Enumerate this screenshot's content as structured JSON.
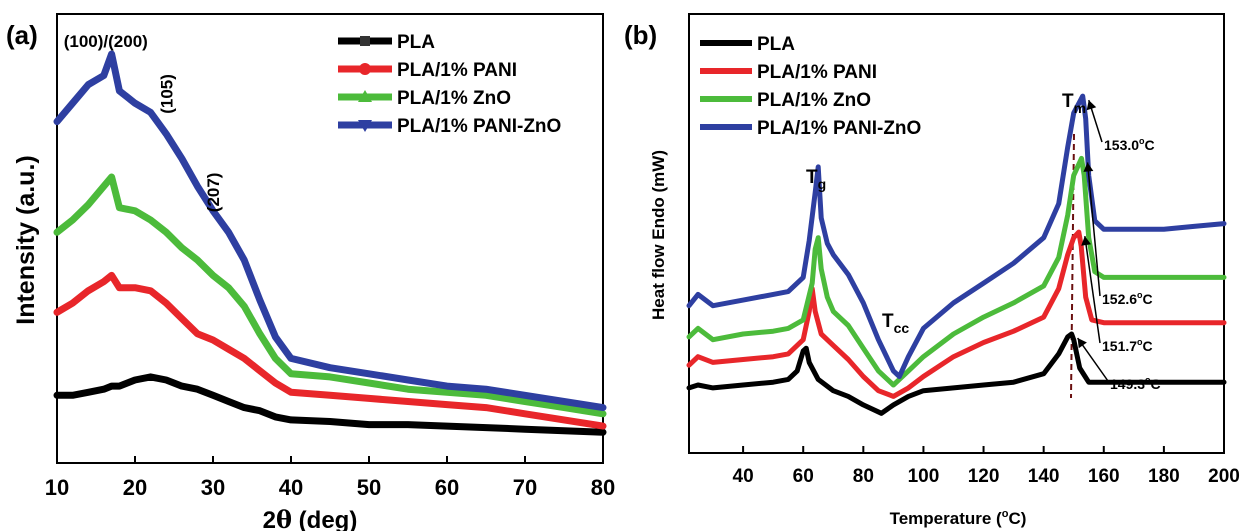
{
  "chart_data": [
    {
      "panel_label": "(a)",
      "type": "line",
      "xlabel_prefix": "2",
      "xlabel_symbol": "θ",
      "xlabel_suffix": " (deg)",
      "ylabel": "Intensity (a.u.)",
      "xlim": [
        10,
        80
      ],
      "x_ticks": [
        "10",
        "20",
        "30",
        "40",
        "50",
        "60",
        "70",
        "80"
      ],
      "y_ticks_labeled": false,
      "grid": false,
      "legend_position": "top-right",
      "series": [
        {
          "name": "PLA",
          "color": "#000000",
          "marker": "square",
          "x": [
            10,
            12,
            14,
            16,
            17,
            18,
            20,
            22,
            24,
            26,
            28,
            30,
            32,
            34,
            36,
            38,
            40,
            45,
            50,
            55,
            60,
            65,
            70,
            75,
            80
          ],
          "y": [
            10,
            10,
            11,
            12,
            13,
            13,
            15,
            16,
            15,
            13,
            12,
            10,
            8,
            6,
            5,
            3,
            2,
            1.5,
            0.5,
            0.5,
            0,
            -0.5,
            -1,
            -1.5,
            -2
          ]
        },
        {
          "name": "PLA/1% PANI",
          "color": "#e8262a",
          "marker": "circle",
          "x": [
            10,
            12,
            14,
            16,
            17,
            18,
            20,
            22,
            24,
            26,
            28,
            30,
            32,
            34,
            36,
            38,
            40,
            45,
            50,
            55,
            60,
            65,
            70,
            75,
            80
          ],
          "y": [
            37,
            40,
            44,
            47,
            49,
            45,
            45,
            44,
            40,
            35,
            30,
            28,
            25,
            22,
            18,
            14,
            11,
            10,
            9,
            8,
            7,
            6,
            4,
            2,
            0
          ]
        },
        {
          "name": "PLA/1% ZnO",
          "color": "#4cbb3b",
          "marker": "triangle-up",
          "x": [
            10,
            12,
            14,
            16,
            17,
            18,
            20,
            22,
            24,
            26,
            28,
            30,
            32,
            34,
            36,
            38,
            40,
            45,
            50,
            55,
            60,
            65,
            70,
            75,
            80
          ],
          "y": [
            63,
            67,
            72,
            78,
            81,
            71,
            70,
            67,
            63,
            58,
            54,
            49,
            45,
            39,
            30,
            22,
            17,
            16,
            14,
            12,
            11,
            10,
            8,
            6,
            4
          ]
        },
        {
          "name": "PLA/1% PANI-ZnO",
          "color": "#2e3fa1",
          "marker": "triangle-down",
          "x": [
            10,
            12,
            14,
            16,
            17,
            18,
            20,
            22,
            24,
            26,
            28,
            30,
            32,
            34,
            36,
            38,
            40,
            45,
            50,
            55,
            60,
            65,
            70,
            75,
            80
          ],
          "y": [
            99,
            105,
            111,
            114,
            121,
            109,
            105,
            102,
            95,
            87,
            78,
            70,
            63,
            54,
            41,
            29,
            22,
            19,
            17,
            15,
            13,
            12,
            10,
            8,
            6
          ]
        }
      ],
      "annotations": [
        {
          "text": "(100)/(200)",
          "x": 16,
          "y": 127
        },
        {
          "text": "(105)",
          "x": 23,
          "y": 108
        },
        {
          "text": "(207)",
          "x": 29,
          "y": 76
        }
      ]
    },
    {
      "panel_label": "(b)",
      "type": "line",
      "xlabel": "Temperature (",
      "xlabel_unit": "C)",
      "xlabel_degree": "o",
      "ylabel": "Heat flow Endo (mW)",
      "xlim": [
        22,
        200
      ],
      "x_ticks": [
        "40",
        "60",
        "80",
        "100",
        "120",
        "140",
        "160",
        "180",
        "200"
      ],
      "y_ticks_labeled": false,
      "grid": false,
      "legend_position": "top-left",
      "series": [
        {
          "name": "PLA",
          "color": "#000000",
          "x": [
            22,
            25,
            30,
            40,
            50,
            55,
            58,
            60,
            61,
            62,
            65,
            70,
            75,
            80,
            86,
            90,
            95,
            100,
            110,
            120,
            130,
            140,
            145,
            148,
            149.3,
            150,
            152,
            155,
            160,
            170,
            180,
            190,
            200
          ],
          "y": [
            3,
            4,
            3,
            4,
            5,
            6,
            9,
            16,
            17,
            12,
            6,
            2,
            0,
            -3,
            -6,
            -3,
            0,
            2,
            3,
            4,
            5,
            8,
            15,
            21,
            22,
            20,
            10,
            5,
            5,
            5,
            5,
            5,
            5
          ]
        },
        {
          "name": "PLA/1% PANI",
          "color": "#e8262a",
          "x": [
            22,
            25,
            30,
            40,
            50,
            55,
            60,
            62,
            63,
            64,
            66,
            70,
            75,
            80,
            85,
            90,
            95,
            100,
            110,
            120,
            130,
            140,
            145,
            148,
            150,
            151.7,
            152.5,
            154,
            156,
            160,
            170,
            180,
            190,
            200
          ],
          "y": [
            11,
            14,
            12,
            13,
            14,
            15,
            20,
            30,
            38,
            30,
            22,
            18,
            13,
            7,
            2,
            0,
            3,
            7,
            14,
            19,
            23,
            28,
            38,
            50,
            56,
            58,
            53,
            35,
            27,
            26,
            26,
            26,
            26,
            26
          ]
        },
        {
          "name": "PLA/1% ZnO",
          "color": "#4cbb3b",
          "x": [
            22,
            25,
            30,
            40,
            50,
            55,
            60,
            63,
            64,
            65,
            66,
            68,
            70,
            75,
            80,
            85,
            90,
            95,
            100,
            110,
            120,
            130,
            140,
            145,
            148,
            150,
            152.6,
            153.5,
            155,
            157,
            160,
            170,
            180,
            190,
            200
          ],
          "y": [
            21,
            24,
            20,
            22,
            23,
            24,
            27,
            40,
            52,
            56,
            45,
            35,
            30,
            25,
            17,
            9,
            4,
            9,
            14,
            22,
            28,
            33,
            39,
            49,
            64,
            78,
            84,
            78,
            56,
            44,
            42,
            42,
            42,
            42,
            42
          ]
        },
        {
          "name": "PLA/1% PANI-ZnO",
          "color": "#2e3fa1",
          "x": [
            22,
            25,
            30,
            40,
            50,
            55,
            60,
            62,
            64,
            65,
            66,
            68,
            70,
            75,
            80,
            85,
            90,
            92,
            95,
            100,
            110,
            120,
            130,
            140,
            145,
            148,
            150,
            152,
            153,
            154,
            155,
            157,
            160,
            170,
            180,
            190,
            200
          ],
          "y": [
            32,
            36,
            32,
            34,
            36,
            37,
            42,
            55,
            72,
            81,
            63,
            54,
            50,
            43,
            33,
            20,
            9,
            7,
            14,
            24,
            33,
            40,
            47,
            56,
            68,
            88,
            100,
            104,
            106,
            98,
            78,
            62,
            59,
            59,
            59,
            60,
            61
          ]
        }
      ],
      "annotations": {
        "tg": {
          "main": "T",
          "sub": "g"
        },
        "tcc": {
          "main": "T",
          "sub": "cc"
        },
        "tm": {
          "main": "T",
          "sub": "m"
        },
        "peaks": [
          {
            "value": "153.0",
            "unit": "C",
            "deg": "o",
            "x": 153,
            "y": 106
          },
          {
            "value": "152.6",
            "unit": "C",
            "deg": "o",
            "x": 152.6,
            "y": 84
          },
          {
            "value": "151.7",
            "unit": "C",
            "deg": "o",
            "x": 151.7,
            "y": 58
          },
          {
            "value": "149.3",
            "unit": "C",
            "deg": "o",
            "x": 149.3,
            "y": 22
          }
        ]
      }
    }
  ]
}
